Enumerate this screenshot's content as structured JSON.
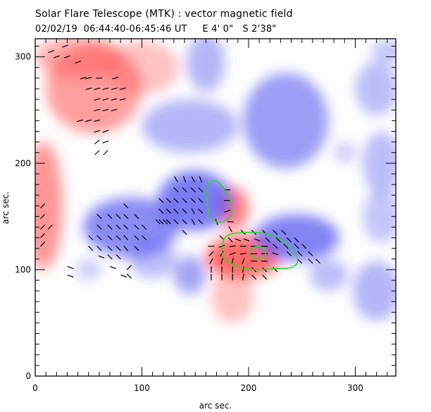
{
  "chart_data": {
    "type": "heatmap",
    "title": "Solar Flare Telescope (MTK) : vector magnetic field",
    "subtitle": "02/02/19  06:44:40-06:45:46 UT     E 4' 0\"   S 2'38\"",
    "xlabel": "arc sec.",
    "ylabel": "arc sec.",
    "xlim": [
      0,
      338
    ],
    "ylim": [
      0,
      317
    ],
    "xticks": [
      0,
      100,
      200,
      300
    ],
    "yticks": [
      0,
      100,
      200,
      300
    ],
    "x_minor_step": 10,
    "y_minor_step": 10,
    "colors": {
      "positive": "#ff5050",
      "negative": "#5a5af0",
      "vector": "#000000",
      "contour": "#22dd22"
    },
    "polarity_regions": [
      {
        "polarity": "positive",
        "x": 55,
        "y": 270,
        "rx": 45,
        "ry": 42,
        "strength": 0.55
      },
      {
        "polarity": "positive",
        "x": 40,
        "y": 300,
        "rx": 40,
        "ry": 20,
        "strength": 0.45
      },
      {
        "polarity": "positive",
        "x": 100,
        "y": 290,
        "rx": 35,
        "ry": 25,
        "strength": 0.35
      },
      {
        "polarity": "positive",
        "x": 8,
        "y": 160,
        "rx": 18,
        "ry": 60,
        "strength": 0.6
      },
      {
        "polarity": "positive",
        "x": 195,
        "y": 112,
        "rx": 35,
        "ry": 20,
        "strength": 0.85
      },
      {
        "polarity": "positive",
        "x": 185,
        "y": 158,
        "rx": 15,
        "ry": 20,
        "strength": 0.75
      },
      {
        "polarity": "positive",
        "x": 185,
        "y": 75,
        "rx": 20,
        "ry": 25,
        "strength": 0.35
      },
      {
        "polarity": "negative",
        "x": 90,
        "y": 140,
        "rx": 45,
        "ry": 28,
        "strength": 0.7
      },
      {
        "polarity": "negative",
        "x": 150,
        "y": 165,
        "rx": 35,
        "ry": 28,
        "strength": 0.8
      },
      {
        "polarity": "negative",
        "x": 145,
        "y": 235,
        "rx": 45,
        "ry": 25,
        "strength": 0.45
      },
      {
        "polarity": "negative",
        "x": 160,
        "y": 295,
        "rx": 18,
        "ry": 28,
        "strength": 0.45
      },
      {
        "polarity": "negative",
        "x": 235,
        "y": 240,
        "rx": 40,
        "ry": 45,
        "strength": 0.6
      },
      {
        "polarity": "negative",
        "x": 245,
        "y": 130,
        "rx": 40,
        "ry": 22,
        "strength": 0.75
      },
      {
        "polarity": "negative",
        "x": 145,
        "y": 95,
        "rx": 15,
        "ry": 18,
        "strength": 0.55
      },
      {
        "polarity": "negative",
        "x": 110,
        "y": 110,
        "rx": 22,
        "ry": 18,
        "strength": 0.4
      },
      {
        "polarity": "negative",
        "x": 50,
        "y": 100,
        "rx": 12,
        "ry": 10,
        "strength": 0.3
      },
      {
        "polarity": "negative",
        "x": 320,
        "y": 270,
        "rx": 20,
        "ry": 25,
        "strength": 0.4
      },
      {
        "polarity": "negative",
        "x": 325,
        "y": 200,
        "rx": 18,
        "ry": 30,
        "strength": 0.4
      },
      {
        "polarity": "negative",
        "x": 325,
        "y": 150,
        "rx": 18,
        "ry": 25,
        "strength": 0.35
      },
      {
        "polarity": "negative",
        "x": 320,
        "y": 80,
        "rx": 22,
        "ry": 28,
        "strength": 0.45
      },
      {
        "polarity": "negative",
        "x": 290,
        "y": 210,
        "rx": 10,
        "ry": 10,
        "strength": 0.3
      },
      {
        "polarity": "negative",
        "x": 275,
        "y": 95,
        "rx": 18,
        "ry": 15,
        "strength": 0.4
      },
      {
        "polarity": "negative",
        "x": 330,
        "y": 305,
        "rx": 15,
        "ry": 12,
        "strength": 0.35
      }
    ],
    "vector_field": [
      {
        "x": 15,
        "y": 305,
        "angle": 20
      },
      {
        "x": 20,
        "y": 300,
        "angle": 20
      },
      {
        "x": 30,
        "y": 300,
        "angle": 20
      },
      {
        "x": 28,
        "y": 310,
        "angle": 20
      },
      {
        "x": 40,
        "y": 295,
        "angle": 20
      },
      {
        "x": 45,
        "y": 280,
        "angle": 15
      },
      {
        "x": 50,
        "y": 280,
        "angle": 15
      },
      {
        "x": 60,
        "y": 280,
        "angle": 0
      },
      {
        "x": 75,
        "y": 280,
        "angle": 15
      },
      {
        "x": 50,
        "y": 270,
        "angle": 15
      },
      {
        "x": 58,
        "y": 270,
        "angle": 15
      },
      {
        "x": 66,
        "y": 270,
        "angle": 15
      },
      {
        "x": 74,
        "y": 270,
        "angle": 15
      },
      {
        "x": 82,
        "y": 270,
        "angle": 15
      },
      {
        "x": 58,
        "y": 260,
        "angle": 15
      },
      {
        "x": 66,
        "y": 260,
        "angle": 15
      },
      {
        "x": 74,
        "y": 260,
        "angle": 15
      },
      {
        "x": 82,
        "y": 260,
        "angle": 15
      },
      {
        "x": 58,
        "y": 250,
        "angle": 15
      },
      {
        "x": 66,
        "y": 250,
        "angle": 15
      },
      {
        "x": 74,
        "y": 250,
        "angle": 15
      },
      {
        "x": 42,
        "y": 240,
        "angle": 15
      },
      {
        "x": 50,
        "y": 240,
        "angle": 15
      },
      {
        "x": 58,
        "y": 240,
        "angle": 15
      },
      {
        "x": 58,
        "y": 230,
        "angle": 15
      },
      {
        "x": 66,
        "y": 230,
        "angle": 20
      },
      {
        "x": 58,
        "y": 220,
        "angle": 40
      },
      {
        "x": 66,
        "y": 220,
        "angle": 20
      },
      {
        "x": 58,
        "y": 210,
        "angle": 45
      },
      {
        "x": 66,
        "y": 210,
        "angle": 45
      },
      {
        "x": 7,
        "y": 160,
        "angle": 45
      },
      {
        "x": 7,
        "y": 150,
        "angle": 45
      },
      {
        "x": 7,
        "y": 140,
        "angle": 45
      },
      {
        "x": 7,
        "y": 132,
        "angle": 45
      },
      {
        "x": 14,
        "y": 140,
        "angle": 45
      },
      {
        "x": 7,
        "y": 124,
        "angle": 45
      },
      {
        "x": 85,
        "y": 160,
        "angle": -45
      },
      {
        "x": 60,
        "y": 150,
        "angle": -45
      },
      {
        "x": 70,
        "y": 150,
        "angle": -45
      },
      {
        "x": 78,
        "y": 150,
        "angle": -45
      },
      {
        "x": 85,
        "y": 150,
        "angle": -45
      },
      {
        "x": 95,
        "y": 150,
        "angle": -45
      },
      {
        "x": 60,
        "y": 140,
        "angle": -45
      },
      {
        "x": 70,
        "y": 140,
        "angle": -45
      },
      {
        "x": 78,
        "y": 140,
        "angle": -45
      },
      {
        "x": 85,
        "y": 140,
        "angle": -45
      },
      {
        "x": 95,
        "y": 140,
        "angle": -45
      },
      {
        "x": 102,
        "y": 140,
        "angle": -45
      },
      {
        "x": 115,
        "y": 145,
        "angle": -45
      },
      {
        "x": 122,
        "y": 145,
        "angle": -45
      },
      {
        "x": 52,
        "y": 130,
        "angle": -45
      },
      {
        "x": 60,
        "y": 130,
        "angle": -45
      },
      {
        "x": 70,
        "y": 130,
        "angle": -45
      },
      {
        "x": 78,
        "y": 130,
        "angle": -45
      },
      {
        "x": 85,
        "y": 130,
        "angle": -50
      },
      {
        "x": 95,
        "y": 130,
        "angle": -45
      },
      {
        "x": 102,
        "y": 130,
        "angle": -45
      },
      {
        "x": 52,
        "y": 120,
        "angle": -45
      },
      {
        "x": 60,
        "y": 120,
        "angle": -45
      },
      {
        "x": 70,
        "y": 120,
        "angle": -45
      },
      {
        "x": 78,
        "y": 120,
        "angle": -45
      },
      {
        "x": 85,
        "y": 120,
        "angle": -50
      },
      {
        "x": 95,
        "y": 120,
        "angle": -45
      },
      {
        "x": 62,
        "y": 112,
        "angle": -20
      },
      {
        "x": 70,
        "y": 112,
        "angle": -45
      },
      {
        "x": 78,
        "y": 112,
        "angle": -45
      },
      {
        "x": 33,
        "y": 102,
        "angle": -20
      },
      {
        "x": 33,
        "y": 94,
        "angle": -20
      },
      {
        "x": 73,
        "y": 102,
        "angle": -20
      },
      {
        "x": 88,
        "y": 102,
        "angle": 45
      },
      {
        "x": 88,
        "y": 94,
        "angle": -45
      },
      {
        "x": 83,
        "y": 94,
        "angle": -20
      },
      {
        "x": 132,
        "y": 185,
        "angle": -60
      },
      {
        "x": 140,
        "y": 185,
        "angle": -70
      },
      {
        "x": 148,
        "y": 185,
        "angle": -60
      },
      {
        "x": 155,
        "y": 185,
        "angle": -70
      },
      {
        "x": 132,
        "y": 175,
        "angle": -45
      },
      {
        "x": 140,
        "y": 175,
        "angle": -45
      },
      {
        "x": 148,
        "y": 175,
        "angle": -45
      },
      {
        "x": 155,
        "y": 175,
        "angle": -45
      },
      {
        "x": 180,
        "y": 175,
        "angle": 0
      },
      {
        "x": 118,
        "y": 165,
        "angle": -45
      },
      {
        "x": 125,
        "y": 165,
        "angle": -45
      },
      {
        "x": 132,
        "y": 165,
        "angle": -45
      },
      {
        "x": 140,
        "y": 165,
        "angle": -45
      },
      {
        "x": 148,
        "y": 165,
        "angle": -45
      },
      {
        "x": 155,
        "y": 165,
        "angle": -45
      },
      {
        "x": 180,
        "y": 165,
        "angle": 0
      },
      {
        "x": 118,
        "y": 155,
        "angle": -45
      },
      {
        "x": 125,
        "y": 155,
        "angle": -45
      },
      {
        "x": 132,
        "y": 155,
        "angle": -45
      },
      {
        "x": 140,
        "y": 155,
        "angle": -45
      },
      {
        "x": 148,
        "y": 155,
        "angle": -60
      },
      {
        "x": 155,
        "y": 155,
        "angle": -45
      },
      {
        "x": 180,
        "y": 155,
        "angle": 20
      },
      {
        "x": 118,
        "y": 145,
        "angle": -45
      },
      {
        "x": 125,
        "y": 145,
        "angle": -45
      },
      {
        "x": 132,
        "y": 145,
        "angle": -45
      },
      {
        "x": 140,
        "y": 145,
        "angle": -45
      },
      {
        "x": 148,
        "y": 145,
        "angle": -60
      },
      {
        "x": 155,
        "y": 145,
        "angle": -45
      },
      {
        "x": 170,
        "y": 145,
        "angle": -70
      },
      {
        "x": 183,
        "y": 145,
        "angle": 0
      },
      {
        "x": 140,
        "y": 135,
        "angle": -45
      },
      {
        "x": 183,
        "y": 138,
        "angle": -60
      },
      {
        "x": 175,
        "y": 130,
        "angle": -45
      },
      {
        "x": 183,
        "y": 128,
        "angle": -45
      },
      {
        "x": 195,
        "y": 135,
        "angle": -45
      },
      {
        "x": 205,
        "y": 135,
        "angle": -45
      },
      {
        "x": 215,
        "y": 135,
        "angle": -45
      },
      {
        "x": 225,
        "y": 135,
        "angle": -45
      },
      {
        "x": 233,
        "y": 135,
        "angle": -45
      },
      {
        "x": 190,
        "y": 128,
        "angle": -20
      },
      {
        "x": 198,
        "y": 128,
        "angle": -20
      },
      {
        "x": 208,
        "y": 128,
        "angle": -20
      },
      {
        "x": 218,
        "y": 128,
        "angle": -45
      },
      {
        "x": 228,
        "y": 128,
        "angle": -45
      },
      {
        "x": 238,
        "y": 128,
        "angle": -45
      },
      {
        "x": 245,
        "y": 128,
        "angle": -45
      },
      {
        "x": 165,
        "y": 122,
        "angle": 0
      },
      {
        "x": 175,
        "y": 122,
        "angle": 20
      },
      {
        "x": 185,
        "y": 122,
        "angle": 10
      },
      {
        "x": 195,
        "y": 122,
        "angle": 0
      },
      {
        "x": 205,
        "y": 122,
        "angle": 0
      },
      {
        "x": 215,
        "y": 122,
        "angle": 0
      },
      {
        "x": 225,
        "y": 122,
        "angle": -45
      },
      {
        "x": 235,
        "y": 122,
        "angle": -45
      },
      {
        "x": 245,
        "y": 122,
        "angle": -45
      },
      {
        "x": 252,
        "y": 122,
        "angle": -45
      },
      {
        "x": 165,
        "y": 115,
        "angle": 45
      },
      {
        "x": 175,
        "y": 115,
        "angle": 60
      },
      {
        "x": 185,
        "y": 115,
        "angle": 20
      },
      {
        "x": 195,
        "y": 115,
        "angle": 10
      },
      {
        "x": 205,
        "y": 115,
        "angle": 0
      },
      {
        "x": 215,
        "y": 115,
        "angle": 0
      },
      {
        "x": 225,
        "y": 115,
        "angle": -20
      },
      {
        "x": 238,
        "y": 115,
        "angle": -45
      },
      {
        "x": 248,
        "y": 115,
        "angle": -45
      },
      {
        "x": 258,
        "y": 115,
        "angle": -45
      },
      {
        "x": 165,
        "y": 108,
        "angle": 60
      },
      {
        "x": 175,
        "y": 108,
        "angle": 75
      },
      {
        "x": 185,
        "y": 108,
        "angle": 80
      },
      {
        "x": 195,
        "y": 108,
        "angle": 70
      },
      {
        "x": 205,
        "y": 108,
        "angle": 0
      },
      {
        "x": 215,
        "y": 108,
        "angle": 0
      },
      {
        "x": 248,
        "y": 108,
        "angle": -45
      },
      {
        "x": 258,
        "y": 108,
        "angle": -45
      },
      {
        "x": 265,
        "y": 108,
        "angle": -45
      },
      {
        "x": 165,
        "y": 100,
        "angle": 90
      },
      {
        "x": 175,
        "y": 100,
        "angle": 90
      },
      {
        "x": 185,
        "y": 100,
        "angle": 90
      },
      {
        "x": 195,
        "y": 100,
        "angle": 80
      },
      {
        "x": 205,
        "y": 100,
        "angle": -45
      },
      {
        "x": 215,
        "y": 100,
        "angle": -45
      },
      {
        "x": 225,
        "y": 100,
        "angle": -45
      },
      {
        "x": 165,
        "y": 93,
        "angle": 90
      },
      {
        "x": 175,
        "y": 93,
        "angle": 90
      },
      {
        "x": 185,
        "y": 93,
        "angle": 90
      },
      {
        "x": 195,
        "y": 93,
        "angle": 80
      },
      {
        "x": 205,
        "y": 93,
        "angle": -45
      },
      {
        "x": 215,
        "y": 93,
        "angle": -45
      }
    ],
    "contours": [
      {
        "name": "contour-north",
        "points": [
          [
            163,
            182
          ],
          [
            170,
            183
          ],
          [
            178,
            175
          ],
          [
            183,
            165
          ],
          [
            184,
            152
          ],
          [
            178,
            146
          ],
          [
            170,
            145
          ],
          [
            164,
            150
          ],
          [
            161,
            165
          ],
          [
            161,
            175
          ]
        ]
      },
      {
        "name": "contour-south-outer",
        "points": [
          [
            180,
            132
          ],
          [
            200,
            135
          ],
          [
            220,
            133
          ],
          [
            232,
            127
          ],
          [
            242,
            118
          ],
          [
            246,
            108
          ],
          [
            240,
            102
          ],
          [
            225,
            101
          ],
          [
            205,
            100
          ],
          [
            190,
            103
          ],
          [
            178,
            110
          ],
          [
            175,
            120
          ]
        ]
      },
      {
        "name": "contour-south-inner",
        "points": [
          [
            202,
            119
          ],
          [
            208,
            122
          ],
          [
            214,
            120
          ],
          [
            216,
            115
          ],
          [
            212,
            111
          ],
          [
            205,
            112
          ],
          [
            201,
            115
          ]
        ]
      }
    ]
  }
}
